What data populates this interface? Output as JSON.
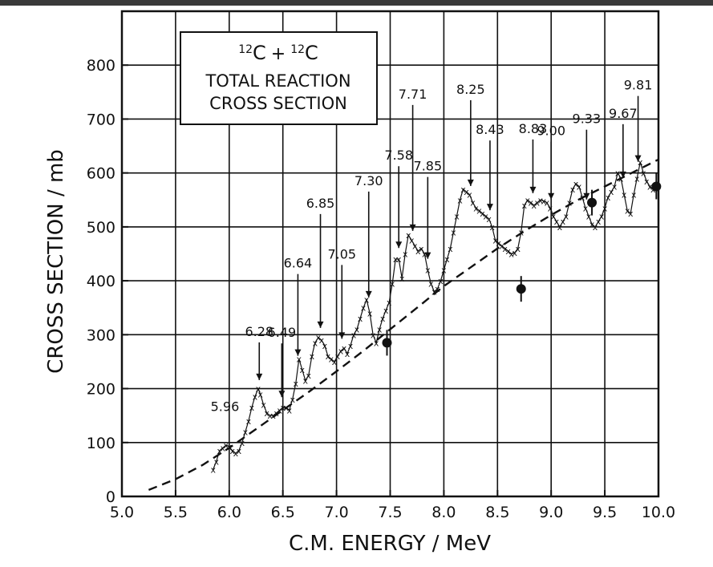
{
  "chart_data": {
    "type": "scatter",
    "title_line1": "12C + 12C",
    "title_nuclide_mass": "12",
    "title_nuclide_symbol": "C",
    "title_operator": "+",
    "title_line2": "TOTAL REACTION",
    "title_line3": "CROSS SECTION",
    "xlabel": "C.M. ENERGY / MeV",
    "ylabel": "CROSS SECTION / mb",
    "xlim": [
      5.0,
      10.0
    ],
    "ylim": [
      0,
      900
    ],
    "xticks": [
      5.0,
      5.5,
      6.0,
      6.5,
      7.0,
      7.5,
      8.0,
      8.5,
      9.0,
      9.5,
      10.0
    ],
    "xtick_labels": [
      "5.0",
      "5.5",
      "6.0",
      "6.5",
      "7.0",
      "7.5",
      "8.0",
      "8.5",
      "9.0",
      "9.5",
      "10.0"
    ],
    "yticks": [
      0,
      100,
      200,
      300,
      400,
      500,
      600,
      700,
      800
    ],
    "ytick_labels": [
      "0",
      "100",
      "200",
      "300",
      "400",
      "500",
      "600",
      "700",
      "800"
    ],
    "grid": true,
    "marker_symbol": "x",
    "series": [
      {
        "kind": "measured-points",
        "marker": "x",
        "x": [
          5.85,
          5.88,
          5.91,
          5.94,
          5.97,
          6.0,
          6.03,
          6.06,
          6.09,
          6.12,
          6.15,
          6.18,
          6.21,
          6.24,
          6.27,
          6.29,
          6.32,
          6.35,
          6.38,
          6.41,
          6.44,
          6.47,
          6.5,
          6.53,
          6.56,
          6.59,
          6.62,
          6.65,
          6.68,
          6.71,
          6.74,
          6.77,
          6.8,
          6.83,
          6.86,
          6.89,
          6.92,
          6.95,
          6.98,
          7.01,
          7.04,
          7.07,
          7.1,
          7.13,
          7.16,
          7.19,
          7.22,
          7.25,
          7.28,
          7.31,
          7.34,
          7.37,
          7.4,
          7.43,
          7.46,
          7.49,
          7.52,
          7.55,
          7.58,
          7.61,
          7.64,
          7.67,
          7.7,
          7.73,
          7.76,
          7.79,
          7.82,
          7.85,
          7.88,
          7.91,
          7.94,
          7.97,
          8.0,
          8.03,
          8.06,
          8.09,
          8.12,
          8.15,
          8.18,
          8.21,
          8.24,
          8.27,
          8.3,
          8.33,
          8.36,
          8.39,
          8.42,
          8.45,
          8.48,
          8.51,
          8.54,
          8.57,
          8.6,
          8.63,
          8.66,
          8.69,
          8.72,
          8.75,
          8.78,
          8.81,
          8.84,
          8.87,
          8.9,
          8.93,
          8.96,
          8.99,
          9.02,
          9.05,
          9.08,
          9.11,
          9.14,
          9.17,
          9.2,
          9.23,
          9.26,
          9.29,
          9.32,
          9.35,
          9.38,
          9.41,
          9.44,
          9.47,
          9.5,
          9.53,
          9.56,
          9.59,
          9.62,
          9.65,
          9.68,
          9.71,
          9.74,
          9.77,
          9.8,
          9.83,
          9.86,
          9.89,
          9.92,
          9.95,
          9.98
        ],
        "y": [
          50,
          65,
          85,
          90,
          95,
          92,
          85,
          80,
          85,
          100,
          120,
          140,
          165,
          185,
          200,
          190,
          170,
          155,
          150,
          150,
          155,
          160,
          165,
          165,
          160,
          180,
          210,
          255,
          235,
          215,
          225,
          260,
          285,
          295,
          290,
          280,
          260,
          255,
          250,
          260,
          270,
          275,
          265,
          280,
          300,
          310,
          330,
          350,
          365,
          340,
          300,
          285,
          310,
          330,
          345,
          360,
          395,
          440,
          440,
          405,
          450,
          485,
          475,
          465,
          455,
          460,
          450,
          420,
          395,
          380,
          385,
          400,
          420,
          440,
          460,
          490,
          520,
          550,
          570,
          565,
          560,
          545,
          535,
          530,
          525,
          520,
          515,
          500,
          475,
          470,
          465,
          460,
          455,
          450,
          452,
          460,
          490,
          540,
          550,
          545,
          540,
          545,
          550,
          548,
          545,
          535,
          520,
          510,
          500,
          510,
          520,
          545,
          570,
          580,
          575,
          555,
          535,
          520,
          505,
          500,
          510,
          520,
          535,
          555,
          565,
          575,
          600,
          590,
          560,
          530,
          525,
          560,
          590,
          620,
          600,
          585,
          575,
          570,
          580
        ]
      },
      {
        "kind": "dashed-curve",
        "x": [
          5.25,
          5.5,
          5.75,
          6.0,
          6.25,
          6.5,
          6.75,
          7.0,
          7.25,
          7.5,
          7.75,
          8.0,
          8.25,
          8.5,
          8.75,
          9.0,
          9.25,
          9.5,
          9.75,
          10.0
        ],
        "y": [
          12,
          32,
          58,
          90,
          125,
          160,
          195,
          232,
          270,
          310,
          350,
          390,
          425,
          460,
          492,
          522,
          550,
          575,
          600,
          625
        ]
      },
      {
        "kind": "filled-points",
        "x": [
          7.47,
          8.72,
          9.38,
          9.98
        ],
        "y": [
          285,
          385,
          545,
          575
        ]
      }
    ],
    "annotations": [
      {
        "label": "5.96",
        "x": 5.96,
        "arrow": false
      },
      {
        "label": "6.28",
        "x": 6.28,
        "arrow": true
      },
      {
        "label": "6.49",
        "x": 6.49,
        "arrow": true
      },
      {
        "label": "6.64",
        "x": 6.64,
        "arrow": true
      },
      {
        "label": "6.85",
        "x": 6.85,
        "arrow": true
      },
      {
        "label": "7.05",
        "x": 7.05,
        "arrow": true
      },
      {
        "label": "7.30",
        "x": 7.3,
        "arrow": true
      },
      {
        "label": "7.58",
        "x": 7.58,
        "arrow": true
      },
      {
        "label": "7.71",
        "x": 7.71,
        "arrow": true
      },
      {
        "label": "7.85",
        "x": 7.85,
        "arrow": true
      },
      {
        "label": "8.25",
        "x": 8.25,
        "arrow": true
      },
      {
        "label": "8.43",
        "x": 8.43,
        "arrow": true
      },
      {
        "label": "8.83",
        "x": 8.83,
        "arrow": true
      },
      {
        "label": "9.00",
        "x": 9.0,
        "arrow": true
      },
      {
        "label": "9.33",
        "x": 9.33,
        "arrow": true
      },
      {
        "label": "9.67",
        "x": 9.67,
        "arrow": true
      },
      {
        "label": "9.81",
        "x": 9.81,
        "arrow": true
      }
    ]
  }
}
